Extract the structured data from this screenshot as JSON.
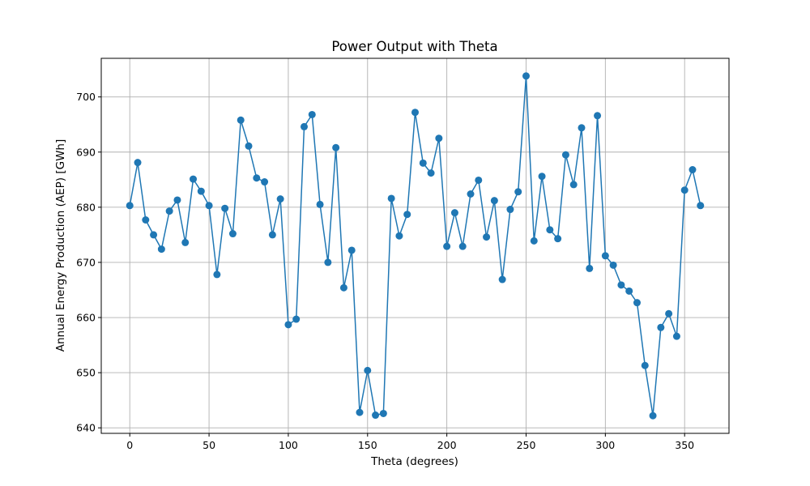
{
  "chart_data": {
    "type": "line",
    "title": "Power Output with Theta",
    "xlabel": "Theta (degrees)",
    "ylabel": "Annual Energy Production (AEP) [GWh]",
    "xlim": [
      -18,
      378
    ],
    "ylim": [
      639,
      707
    ],
    "xticks": [
      0,
      50,
      100,
      150,
      200,
      250,
      300,
      350
    ],
    "yticks": [
      640,
      650,
      660,
      670,
      680,
      690,
      700
    ],
    "grid": true,
    "color": "#1f77b4",
    "marker": "circle",
    "x": [
      0,
      5,
      10,
      15,
      20,
      25,
      30,
      35,
      40,
      45,
      50,
      55,
      60,
      65,
      70,
      75,
      80,
      85,
      90,
      95,
      100,
      105,
      110,
      115,
      120,
      125,
      130,
      135,
      140,
      145,
      150,
      155,
      160,
      165,
      170,
      175,
      180,
      185,
      190,
      195,
      200,
      205,
      210,
      215,
      220,
      225,
      230,
      235,
      240,
      245,
      250,
      255,
      260,
      265,
      270,
      275,
      280,
      285,
      290,
      295,
      300,
      305,
      310,
      315,
      320,
      325,
      330,
      335,
      340,
      345,
      350,
      355,
      360
    ],
    "y": [
      680.3,
      688.1,
      677.7,
      675.0,
      672.4,
      679.3,
      681.3,
      673.6,
      685.1,
      682.9,
      680.3,
      667.8,
      679.8,
      675.2,
      695.8,
      691.1,
      685.3,
      684.6,
      675.0,
      681.5,
      658.7,
      659.7,
      694.6,
      696.8,
      680.5,
      670.0,
      690.8,
      665.4,
      672.2,
      642.8,
      650.4,
      642.3,
      642.6,
      681.6,
      674.8,
      678.7,
      697.2,
      688.0,
      686.2,
      692.5,
      672.9,
      679.0,
      672.9,
      682.4,
      684.9,
      674.6,
      681.2,
      666.9,
      679.6,
      682.8,
      703.8,
      673.9,
      685.6,
      675.9,
      674.3,
      689.5,
      684.1,
      694.4,
      668.9,
      696.6,
      671.2,
      669.5,
      665.9,
      664.8,
      662.7,
      651.3,
      642.2,
      658.2,
      660.7,
      656.6,
      683.1,
      686.8,
      680.3
    ]
  }
}
